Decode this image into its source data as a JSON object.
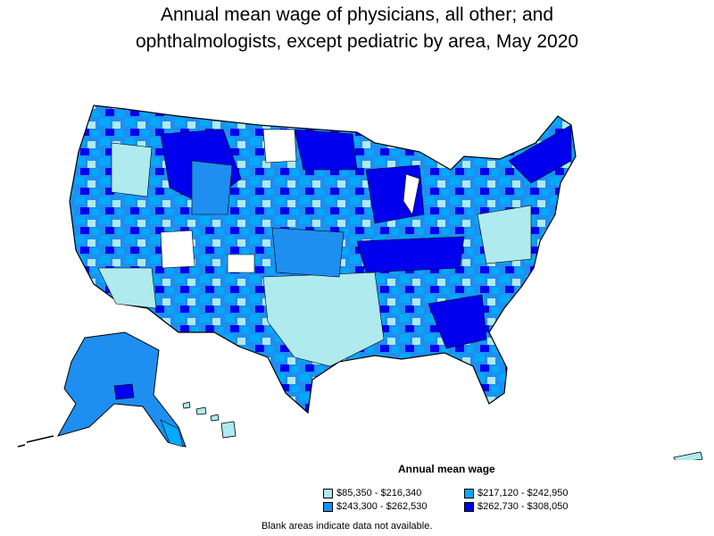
{
  "title": {
    "line1": "Annual mean wage of physicians, all other; and",
    "line2": "ophthalmologists, except pediatric by area, May 2020"
  },
  "legend": {
    "title": "Annual mean wage",
    "items": [
      {
        "label": "$85,350 - $216,340",
        "color": "#aeeaee"
      },
      {
        "label": "$217,120 - $242,950",
        "color": "#00aaff"
      },
      {
        "label": "$243,300 - $262,530",
        "color": "#1e8ff0"
      },
      {
        "label": "$262,730 - $308,050",
        "color": "#0000ee"
      }
    ]
  },
  "note": "Blank areas indicate data not available."
}
